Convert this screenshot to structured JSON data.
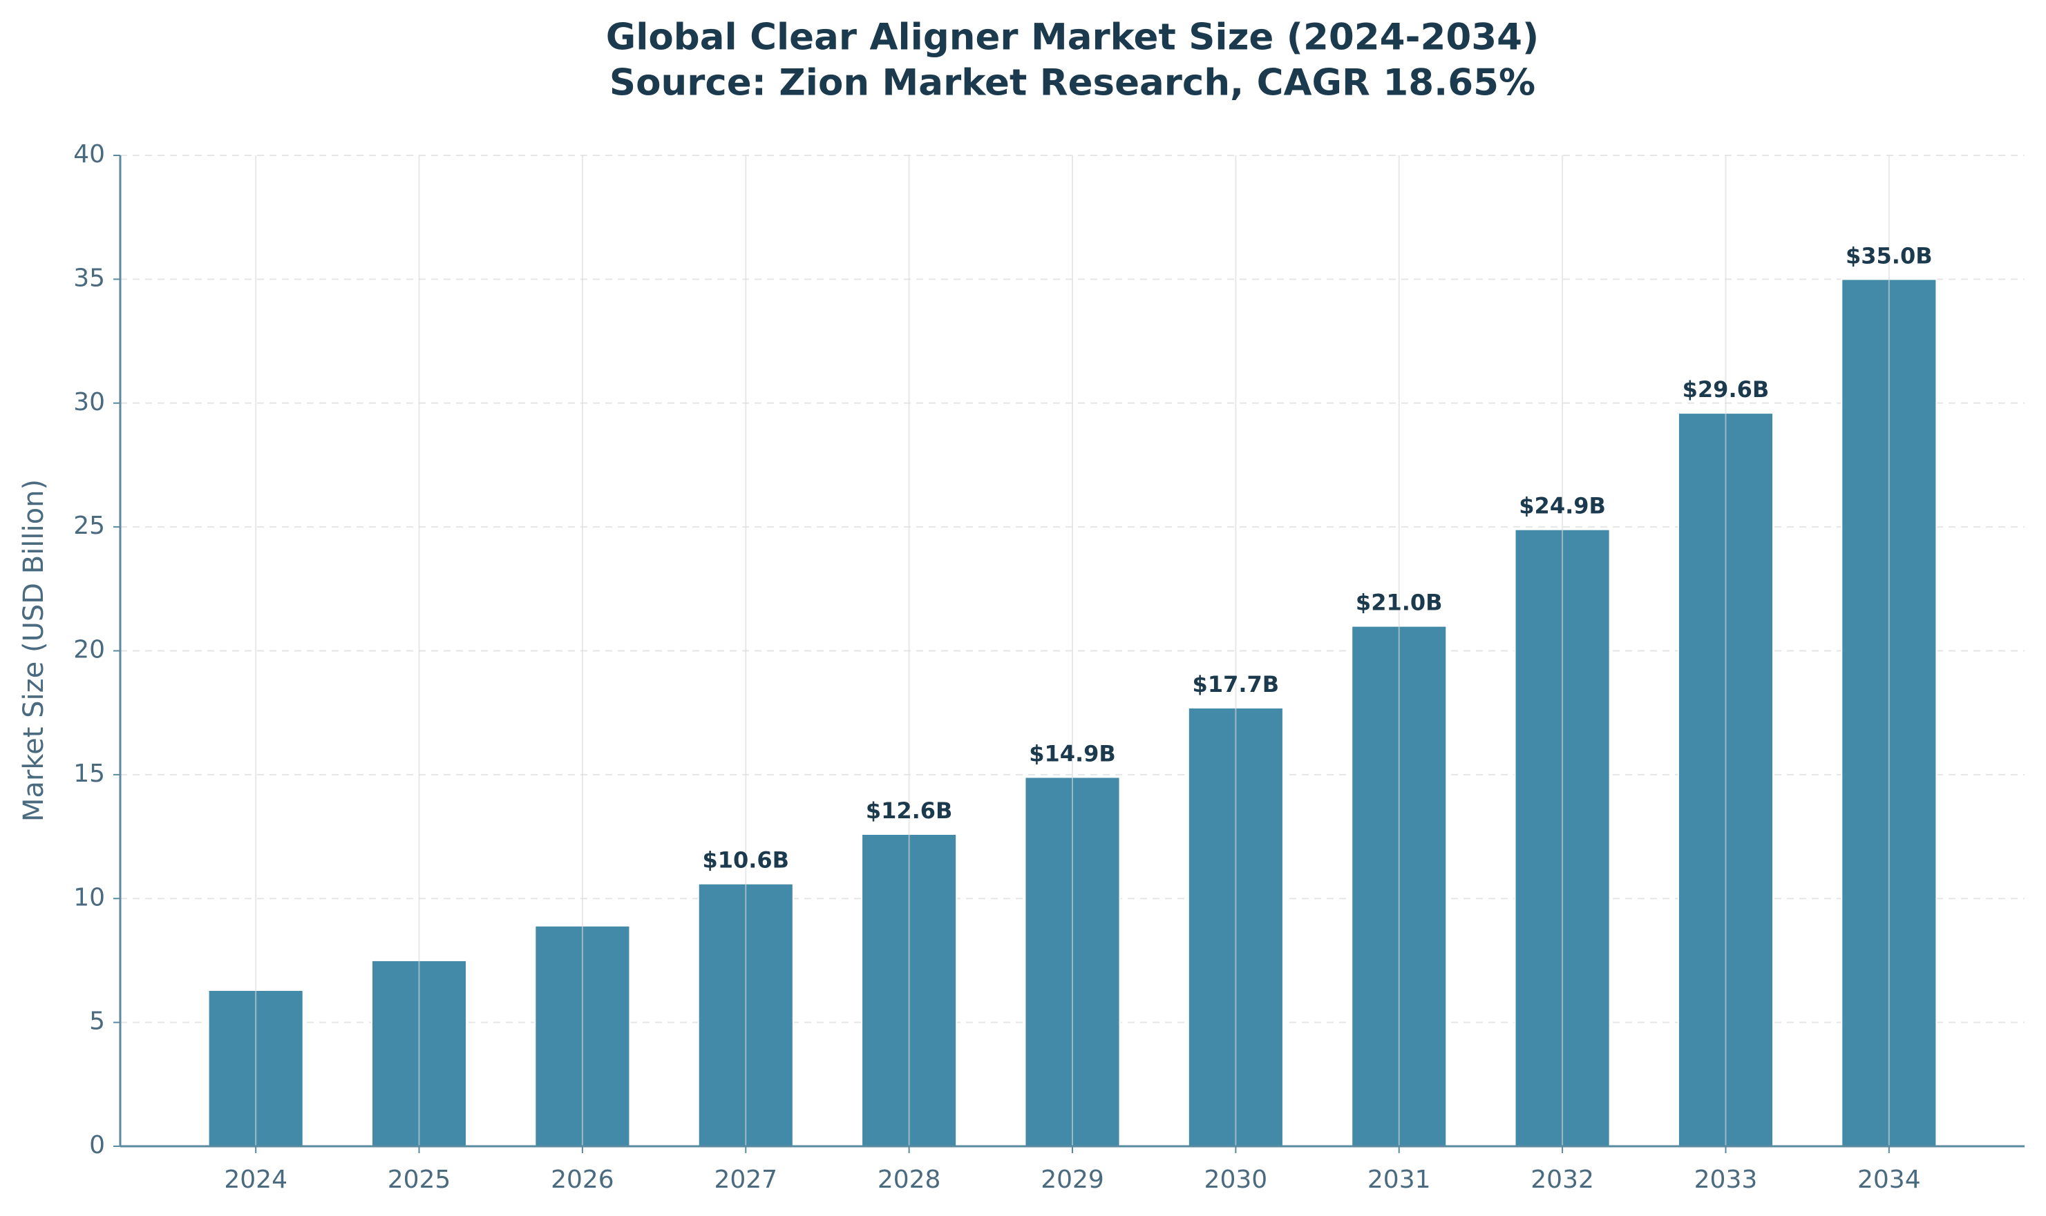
{
  "chart_data": {
    "type": "bar",
    "title": "Global Clear Aligner Market Size (2024-2034)",
    "subtitle": "Source: Zion Market Research, CAGR 18.65%",
    "y_label": "Market Size (USD Billion)",
    "categories": [
      "2024",
      "2025",
      "2026",
      "2027",
      "2028",
      "2029",
      "2030",
      "2031",
      "2032",
      "2033",
      "2034"
    ],
    "values": [
      6.3,
      7.5,
      8.9,
      10.6,
      12.6,
      14.9,
      17.7,
      21.0,
      24.9,
      29.6,
      35.0
    ],
    "value_labels": [
      null,
      null,
      null,
      "$10.6B",
      "$12.6B",
      "$14.9B",
      "$17.7B",
      "$21.0B",
      "$24.9B",
      "$29.6B",
      "$35.0B"
    ],
    "color": "#4389a8",
    "ylim": [
      0,
      40
    ],
    "yticks": [
      0,
      5,
      10,
      15,
      20,
      25,
      30,
      35,
      40
    ],
    "grid": true
  }
}
